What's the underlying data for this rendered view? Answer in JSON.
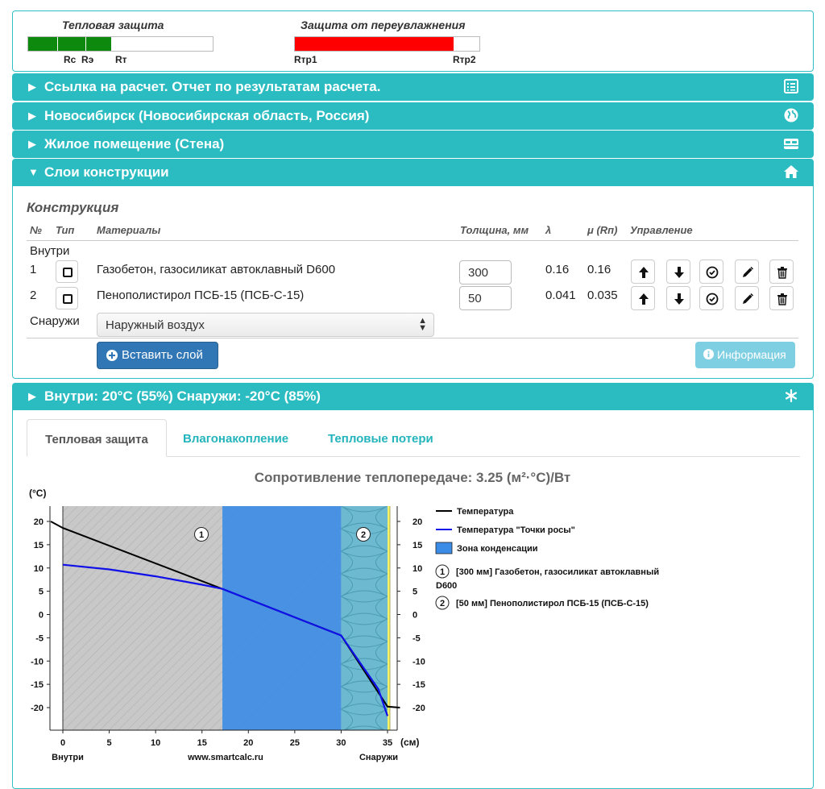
{
  "indicators": {
    "thermal": {
      "title": "Тепловая защита",
      "labels": [
        "Rс",
        "Rэ",
        "Rт"
      ],
      "fill_fraction": 0.45,
      "color": "#0d8a0d"
    },
    "moisture": {
      "title": "Защита от переувлажнения",
      "labels": [
        "Rтр1",
        "Rтр2"
      ],
      "fill_fraction": 0.86,
      "color": "#ff0000"
    }
  },
  "panels": {
    "link": {
      "title": "Ссылка на расчет. Отчет по результатам расчета.",
      "icon": "list-icon"
    },
    "city": {
      "title": "Новосибирск (Новосибирская область, Россия)",
      "icon": "globe-icon"
    },
    "room": {
      "title": "Жилое помещение (Стена)",
      "icon": "bed-icon"
    },
    "layers": {
      "title": "Слои конструкции",
      "icon": "home-icon"
    },
    "conditions": {
      "title": "Внутри: 20°C (55%) Снаружи: -20°C (85%)",
      "icon": "snowflake-icon"
    }
  },
  "construction": {
    "title": "Конструкция",
    "headers": {
      "num": "№",
      "type": "Тип",
      "materials": "Материалы",
      "thickness": "Толщина, мм",
      "lambda": "λ",
      "mu": "μ (Rп)",
      "control": "Управление"
    },
    "inside_label": "Внутри",
    "outside_label": "Снаружи",
    "rows": [
      {
        "num": "1",
        "material": "Газобетон, газосиликат автоклавный D600",
        "thickness": "300",
        "lambda": "0.16",
        "mu": "0.16"
      },
      {
        "num": "2",
        "material": "Пенополистирол ПСБ-15 (ПСБ-С-15)",
        "thickness": "50",
        "lambda": "0.041",
        "mu": "0.035"
      }
    ],
    "outside_select": "Наружный воздух",
    "insert_button": "Вставить слой",
    "info_button": "Информация"
  },
  "tabs": [
    "Тепловая защита",
    "Влагонакопление",
    "Тепловые потери"
  ],
  "chart_title": "Сопротивление теплопередаче: 3.25 (м²·°С)/Вт",
  "chart_data": {
    "type": "line",
    "ylabel": "(°С)",
    "xlabel_unit": "(см)",
    "x_ticks": [
      0,
      5,
      10,
      15,
      20,
      25,
      30,
      35
    ],
    "y_ticks": [
      20,
      15,
      10,
      5,
      0,
      -5,
      -10,
      -15,
      -20
    ],
    "xlim": [
      0,
      35.2
    ],
    "ylim": [
      -22.5,
      23
    ],
    "bottom_labels": {
      "left": "Внутри",
      "center": "www.smartcalc.ru",
      "right": "Снаружи"
    },
    "layers": [
      {
        "num": "1",
        "from": 0,
        "to": 30,
        "legend": "[300 мм] Газобетон, газосиликат автоклавный D600"
      },
      {
        "num": "2",
        "from": 30,
        "to": 35,
        "legend": "[50 мм] Пенополистирол ПСБ-15 (ПСБ-С-15)"
      }
    ],
    "condensation_zone": {
      "from": 17.2,
      "to": 35,
      "color": "#3b8ce6"
    },
    "series": [
      {
        "name": "Температура",
        "color": "#000000",
        "x": [
          -1.3,
          0,
          17.2,
          30,
          35,
          36.3
        ],
        "y": [
          20,
          18.6,
          5.5,
          -4.5,
          -19.8,
          -20
        ]
      },
      {
        "name": "Температура \"Точки росы\"",
        "color": "#1010e8",
        "x": [
          0,
          5,
          10,
          15,
          17.2,
          30,
          34,
          35
        ],
        "y": [
          10.7,
          9.7,
          8.2,
          6.4,
          5.5,
          -4.5,
          -16,
          -21.8
        ]
      }
    ],
    "legend_zone": "Зона конденсации"
  }
}
